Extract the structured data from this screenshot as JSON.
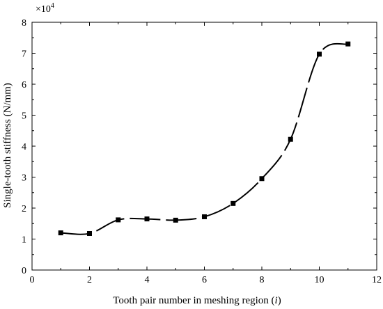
{
  "chart_data": {
    "type": "line",
    "xlabel_text": "Tooth pair number in meshing region (",
    "xlabel_var": "i",
    "xlabel_close": ")",
    "ylabel": "Single-tooth stiffness (N/mm)",
    "y_multiplier": {
      "base": "×10",
      "exp": "4"
    },
    "xlim": [
      0,
      12
    ],
    "ylim": [
      0,
      8
    ],
    "xticks": [
      0,
      2,
      4,
      6,
      8,
      10,
      12
    ],
    "yticks": [
      0,
      1,
      2,
      3,
      4,
      5,
      6,
      7,
      8
    ],
    "grid": false,
    "legend": "none",
    "series": [
      {
        "marker": "square",
        "color": "#000000",
        "line_style": "dashed-smooth",
        "x": [
          1,
          2,
          3,
          4,
          5,
          6,
          7,
          8,
          9,
          10,
          11
        ],
        "y": [
          1.2,
          1.18,
          1.62,
          1.65,
          1.61,
          1.72,
          2.15,
          2.95,
          4.22,
          6.97,
          7.3
        ]
      }
    ]
  }
}
